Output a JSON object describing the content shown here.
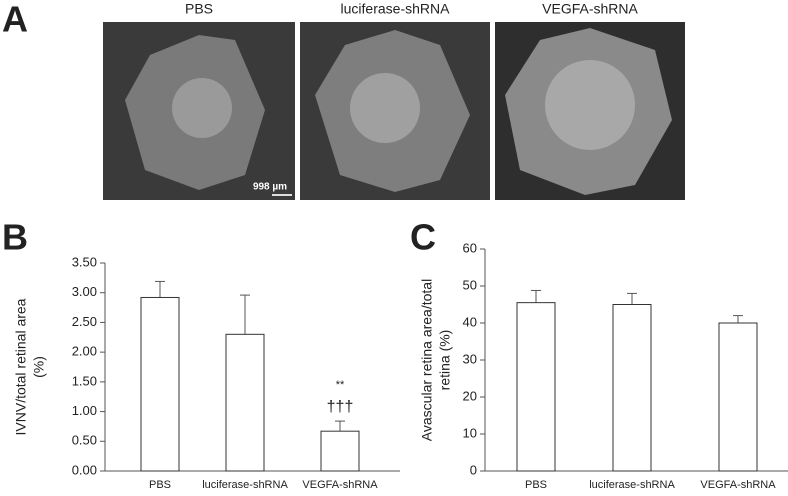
{
  "panel_a": {
    "label": "A",
    "images": [
      {
        "title": "PBS"
      },
      {
        "title": "luciferase-shRNA"
      },
      {
        "title": "VEGFA-shRNA"
      }
    ],
    "scale_bar": "998 µm"
  },
  "chart_data": [
    {
      "type": "bar",
      "panel": "B",
      "ylabel": [
        "IVNV/total retinal area",
        "(%)"
      ],
      "categories": [
        "PBS",
        "luciferase-shRNA",
        "VEGFA-shRNA"
      ],
      "values": [
        2.92,
        2.3,
        0.67
      ],
      "errors": [
        0.27,
        0.66,
        0.17
      ],
      "color": "#ffffff",
      "ylim": [
        0,
        3.5
      ],
      "yticks": [
        {
          "value": 0,
          "label": "0.00"
        },
        {
          "value": 0.5,
          "label": "0.50"
        },
        {
          "value": 1,
          "label": "1.00"
        },
        {
          "value": 1.5,
          "label": "1.50"
        },
        {
          "value": 2,
          "label": "2.00"
        },
        {
          "value": 2.5,
          "label": "2.50"
        },
        {
          "value": 3,
          "label": "3.00"
        },
        {
          "value": 3.5,
          "label": "3.50"
        }
      ],
      "annotations": [
        "**",
        "†††"
      ]
    },
    {
      "type": "bar",
      "panel": "C",
      "ylabel": [
        "Avascular retina area/total",
        "retina (%)"
      ],
      "categories": [
        "PBS",
        "luciferase-shRNA",
        "VEGFA-shRNA"
      ],
      "values": [
        45.5,
        45,
        40
      ],
      "errors": [
        3.3,
        3,
        2
      ],
      "color": "#ffffff",
      "ylim": [
        0,
        60
      ],
      "yticks": [
        0,
        10,
        20,
        30,
        40,
        50,
        60
      ]
    }
  ]
}
